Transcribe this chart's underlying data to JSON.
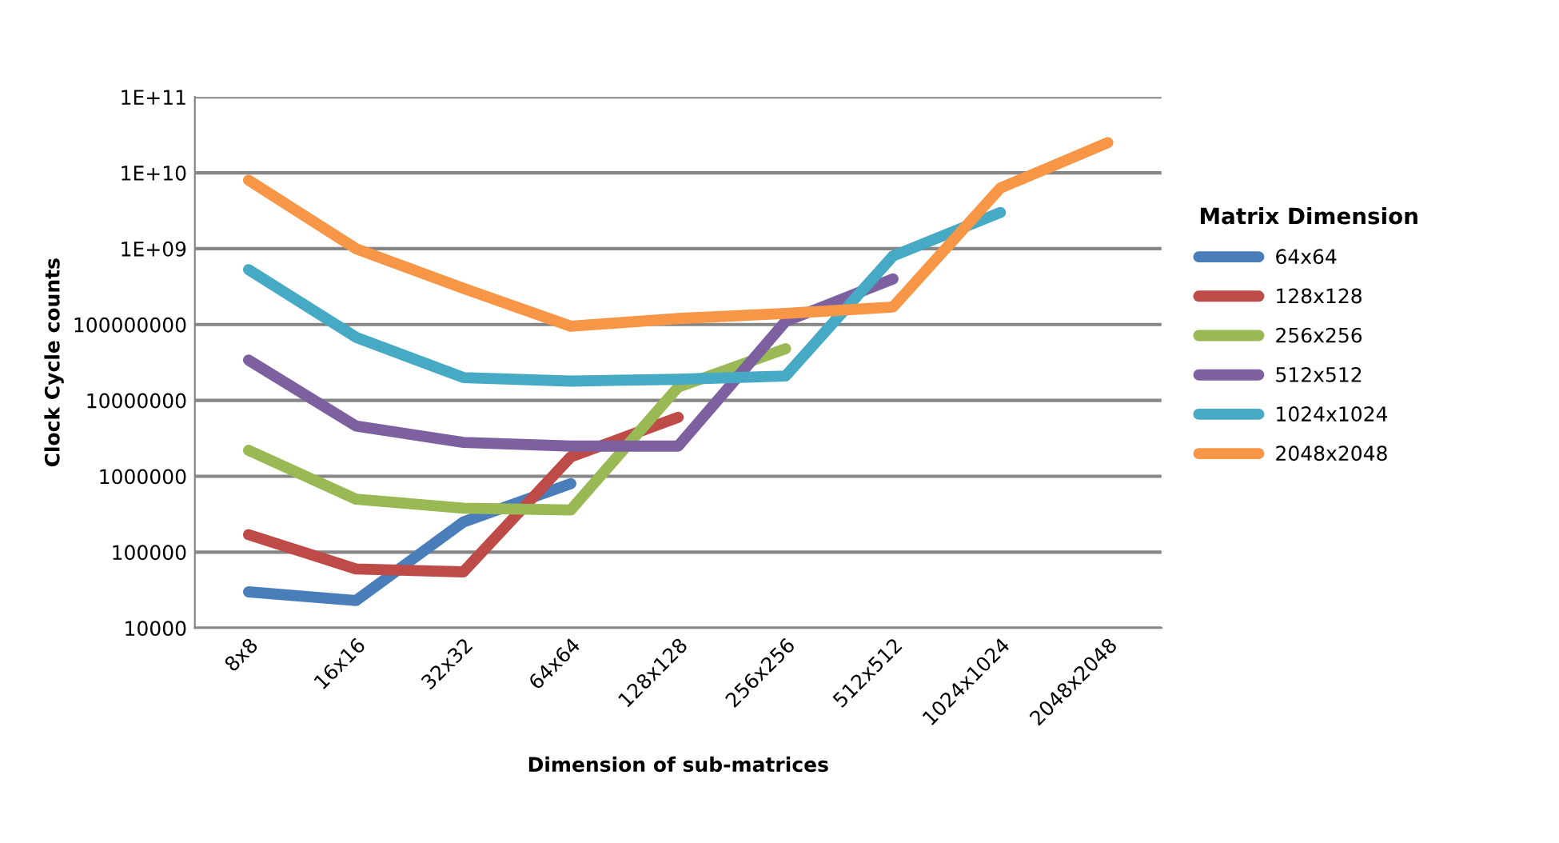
{
  "chart_data": {
    "type": "line",
    "xlabel": "Dimension of sub-matrices",
    "ylabel": "Clock Cycle counts",
    "legend_title": "Matrix Dimension",
    "categories": [
      "8x8",
      "16x16",
      "32x32",
      "64x64",
      "128x128",
      "256x256",
      "512x512",
      "1024x1024",
      "2048x2048"
    ],
    "series": [
      {
        "name": "64x64",
        "color": "#4a7ebb",
        "values": [
          30000,
          23000,
          250000,
          800000,
          null,
          null,
          null,
          null,
          null
        ]
      },
      {
        "name": "128x128",
        "color": "#be4b48",
        "values": [
          170000,
          60000,
          55000,
          1800000,
          6000000,
          null,
          null,
          null,
          null
        ]
      },
      {
        "name": "256x256",
        "color": "#98b954",
        "values": [
          2200000,
          500000,
          380000,
          360000,
          15000000,
          48000000,
          null,
          null,
          null
        ]
      },
      {
        "name": "512x512",
        "color": "#7d60a0",
        "values": [
          34000000,
          4600000,
          2800000,
          2500000,
          2500000,
          110000000,
          400000000,
          null,
          null
        ]
      },
      {
        "name": "1024x1024",
        "color": "#46aac5",
        "values": [
          530000000,
          68000000,
          20000000,
          18000000,
          19000000,
          21000000,
          800000000,
          3000000000,
          null
        ]
      },
      {
        "name": "2048x2048",
        "color": "#f79646",
        "values": [
          8000000000,
          1000000000,
          300000000,
          95000000,
          120000000,
          140000000,
          170000000,
          6300000000,
          25000000000
        ]
      }
    ],
    "log": "y",
    "ylim": [
      10000,
      100000000000
    ],
    "yticks": [
      10000,
      100000,
      1000000,
      10000000,
      100000000,
      {
        "value": 1000000000,
        "label": "1E+09"
      },
      {
        "value": 10000000000,
        "label": "1E+10"
      },
      {
        "value": 100000000000,
        "label": "1E+11"
      }
    ],
    "grid": "y",
    "legend": "right",
    "marker": "none",
    "line_style": "solid"
  }
}
